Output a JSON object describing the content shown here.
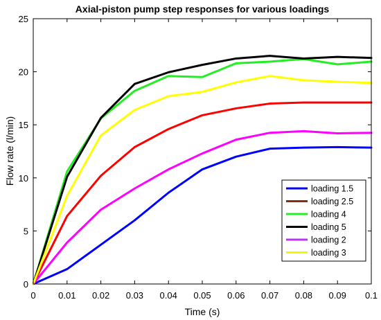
{
  "chart_data": {
    "type": "line",
    "title": "Axial-piston pump step responses for various loadings",
    "xlabel": "Time (s)",
    "ylabel": "Flow rate (l/min)",
    "xlim": [
      0,
      0.1
    ],
    "ylim": [
      0,
      25
    ],
    "x_ticks": [
      "0",
      "0.01",
      "0.02",
      "0.03",
      "0.04",
      "0.05",
      "0.06",
      "0.07",
      "0.08",
      "0.09",
      "0.1"
    ],
    "y_ticks": [
      "0",
      "5",
      "10",
      "15",
      "20",
      "25"
    ],
    "grid": false,
    "legend_position": "bottom-right",
    "x": [
      0,
      0.01,
      0.02,
      0.03,
      0.04,
      0.05,
      0.06,
      0.07,
      0.08,
      0.09,
      0.1
    ],
    "series": [
      {
        "name": "loading 1.5",
        "color": "#0000ff",
        "values": [
          0,
          1.4,
          3.7,
          6.0,
          8.6,
          10.8,
          12.0,
          12.75,
          12.85,
          12.9,
          12.85
        ]
      },
      {
        "name": "loading 2.5",
        "color": "#ff0000",
        "legend_color": "#8b2a14",
        "values": [
          0,
          6.4,
          10.2,
          12.9,
          14.6,
          15.9,
          16.55,
          17.0,
          17.1,
          17.1,
          17.1
        ]
      },
      {
        "name": "loading 4",
        "color": "#22ee22",
        "values": [
          0,
          10.6,
          15.6,
          18.2,
          19.6,
          19.5,
          20.8,
          20.95,
          21.2,
          20.7,
          20.95
        ]
      },
      {
        "name": "loading 5",
        "color": "#000000",
        "values": [
          0,
          10.1,
          15.65,
          18.85,
          19.95,
          20.65,
          21.25,
          21.5,
          21.25,
          21.4,
          21.3
        ]
      },
      {
        "name": "loading 2",
        "color": "#ff00ff",
        "legend_color": "#bb33ff",
        "values": [
          0,
          3.9,
          7.0,
          9.0,
          10.8,
          12.3,
          13.6,
          14.25,
          14.4,
          14.2,
          14.25
        ]
      },
      {
        "name": "loading 3",
        "color": "#ffff00",
        "legend_color": "#f5f500",
        "values": [
          0,
          8.3,
          14.0,
          16.4,
          17.7,
          18.1,
          19.0,
          19.6,
          19.2,
          19.05,
          18.95
        ]
      }
    ]
  }
}
